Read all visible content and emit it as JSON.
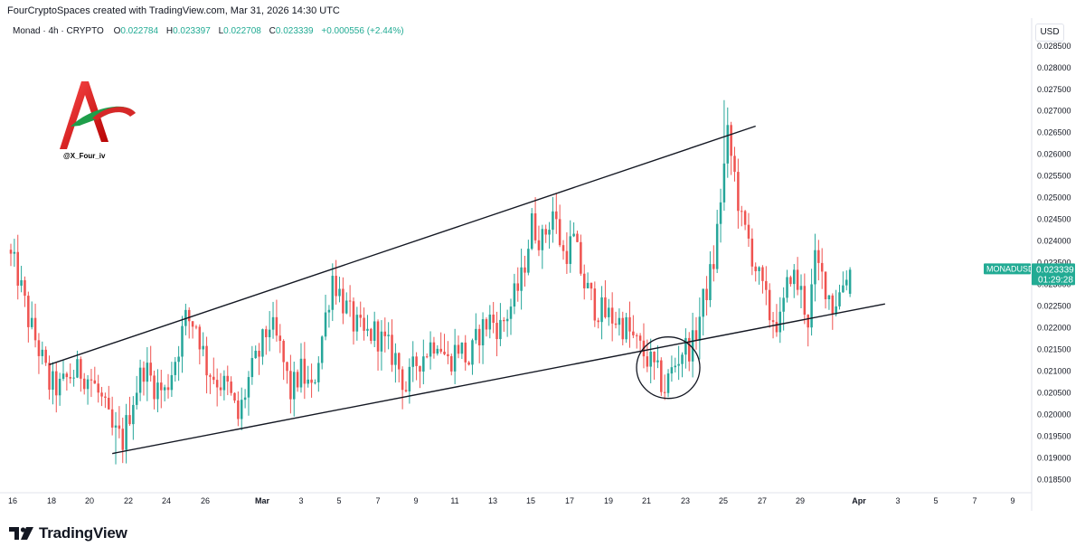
{
  "header": {
    "caption": "FourCryptoSpaces created with TradingView.com, Mar 31, 2026 14:30 UTC",
    "symbol_line": "Monad · 4h · CRYPTO",
    "open_label": "O",
    "open_value": "0.022784",
    "high_label": "H",
    "high_value": "0.023397",
    "low_label": "L",
    "low_value": "0.022708",
    "close_label": "C",
    "close_value": "0.023339",
    "change": "+0.000556 (+2.44%)"
  },
  "currency_button": "USD",
  "watermark": {
    "handle": "@X_Four_iv"
  },
  "price_tag": {
    "symbol": "MONADUSD",
    "price": "0.023339",
    "countdown": "01:29:28"
  },
  "brand": {
    "name": "TradingView"
  },
  "colors": {
    "up": "#22ab94",
    "down": "#f23645",
    "up_candle": "#26a69a",
    "down_candle": "#ef5350",
    "line": "#131722",
    "grid": "#f0f3fa",
    "tag": "#22ab94"
  },
  "chart_data": {
    "type": "candlestick",
    "timeframe": "4h",
    "ylim": [
      0.0183,
      0.0286
    ],
    "y_ticks": [
      "0.028500",
      "0.028000",
      "0.027500",
      "0.027000",
      "0.026500",
      "0.026000",
      "0.025500",
      "0.025000",
      "0.024500",
      "0.024000",
      "0.023500",
      "0.023000",
      "0.022500",
      "0.022000",
      "0.021500",
      "0.021000",
      "0.020500",
      "0.020000",
      "0.019500",
      "0.019000",
      "0.018500"
    ],
    "x_ticks": [
      "16",
      "18",
      "20",
      "22",
      "24",
      "26",
      "Mar",
      "3",
      "5",
      "7",
      "9",
      "11",
      "13",
      "15",
      "17",
      "19",
      "21",
      "23",
      "25",
      "27",
      "29",
      "Apr",
      "3",
      "5",
      "7",
      "9"
    ],
    "price_path": [
      [
        0,
        0.0238
      ],
      [
        3,
        0.0232
      ],
      [
        6,
        0.0222
      ],
      [
        9,
        0.0215
      ],
      [
        12,
        0.0207
      ],
      [
        15,
        0.0206
      ],
      [
        18,
        0.0209
      ],
      [
        21,
        0.021
      ],
      [
        24,
        0.0208
      ],
      [
        27,
        0.0203
      ],
      [
        30,
        0.0196
      ],
      [
        33,
        0.0194
      ],
      [
        36,
        0.0204
      ],
      [
        39,
        0.0211
      ],
      [
        42,
        0.0207
      ],
      [
        45,
        0.0205
      ],
      [
        48,
        0.0213
      ],
      [
        51,
        0.0222
      ],
      [
        54,
        0.0221
      ],
      [
        57,
        0.0211
      ],
      [
        60,
        0.0208
      ],
      [
        63,
        0.0206
      ],
      [
        66,
        0.0199
      ],
      [
        69,
        0.0208
      ],
      [
        72,
        0.0214
      ],
      [
        75,
        0.0221
      ],
      [
        78,
        0.0215
      ],
      [
        81,
        0.0205
      ],
      [
        84,
        0.021
      ],
      [
        87,
        0.0205
      ],
      [
        90,
        0.0218
      ],
      [
        93,
        0.0232
      ],
      [
        96,
        0.0226
      ],
      [
        99,
        0.0221
      ],
      [
        102,
        0.0218
      ],
      [
        105,
        0.0219
      ],
      [
        108,
        0.0216
      ],
      [
        111,
        0.0213
      ],
      [
        114,
        0.0206
      ],
      [
        117,
        0.0212
      ],
      [
        120,
        0.0215
      ],
      [
        123,
        0.0218
      ],
      [
        126,
        0.0212
      ],
      [
        129,
        0.0216
      ],
      [
        132,
        0.0212
      ],
      [
        135,
        0.0219
      ],
      [
        138,
        0.0222
      ],
      [
        141,
        0.022
      ],
      [
        144,
        0.0225
      ],
      [
        147,
        0.0231
      ],
      [
        150,
        0.0244
      ],
      [
        153,
        0.024
      ],
      [
        156,
        0.0247
      ],
      [
        159,
        0.0237
      ],
      [
        162,
        0.024
      ],
      [
        165,
        0.023
      ],
      [
        168,
        0.0225
      ],
      [
        171,
        0.0223
      ],
      [
        174,
        0.0222
      ],
      [
        177,
        0.022
      ],
      [
        180,
        0.0216
      ],
      [
        183,
        0.0213
      ],
      [
        186,
        0.0209
      ],
      [
        188,
        0.0206
      ],
      [
        190,
        0.021
      ],
      [
        193,
        0.0215
      ],
      [
        196,
        0.0216
      ],
      [
        199,
        0.0226
      ],
      [
        202,
        0.0235
      ],
      [
        204,
        0.025
      ],
      [
        206,
        0.0264
      ],
      [
        208,
        0.0255
      ],
      [
        210,
        0.0244
      ],
      [
        212,
        0.024
      ],
      [
        215,
        0.0231
      ],
      [
        218,
        0.0223
      ],
      [
        221,
        0.0221
      ],
      [
        224,
        0.0233
      ],
      [
        227,
        0.0228
      ],
      [
        229,
        0.0222
      ],
      [
        231,
        0.0235
      ],
      [
        234,
        0.023
      ],
      [
        236,
        0.0225
      ],
      [
        238,
        0.0228
      ],
      [
        240,
        0.0233
      ]
    ],
    "candle_count": 241,
    "last": {
      "open": 0.022784,
      "high": 0.023397,
      "low": 0.022708,
      "close": 0.023339
    },
    "annotations": {
      "wedge_upper": {
        "from": {
          "i": 11,
          "price": 0.02115
        },
        "to": {
          "i": 213,
          "price": 0.02665
        }
      },
      "wedge_lower": {
        "from": {
          "i": 29,
          "price": 0.0191
        },
        "to": {
          "i": 250,
          "price": 0.02255
        }
      },
      "circle": {
        "i": 188,
        "price": 0.02108
      }
    },
    "grid": false
  }
}
